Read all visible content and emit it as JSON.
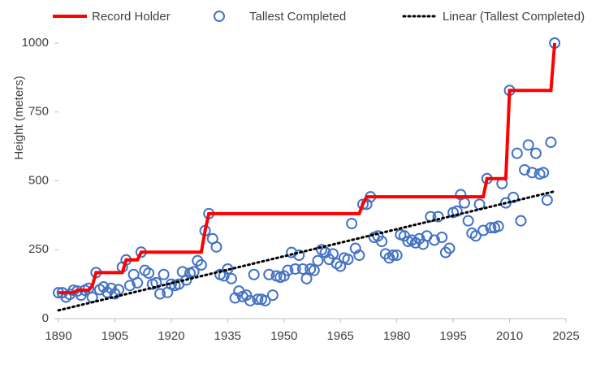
{
  "chart_data": {
    "type": "line",
    "y_label": "Height (meters)",
    "xlim": [
      1890,
      2025
    ],
    "xticks": [
      1890,
      1905,
      1920,
      1935,
      1950,
      1965,
      1980,
      1995,
      2010,
      2025
    ],
    "ylim": [
      0,
      1000
    ],
    "yticks": [
      0,
      250,
      500,
      750,
      1000
    ],
    "legend": "top",
    "series": [
      {
        "name": "Record Holder",
        "type": "line",
        "color": "#ff0000",
        "x": [
          1890,
          1894,
          1895,
          1898,
          1899,
          1900,
          1907,
          1908,
          1911,
          1912,
          1928,
          1929,
          1930,
          1970,
          1971,
          1972,
          2003,
          2004,
          2009,
          2010,
          2021,
          2022
        ],
        "values": [
          94,
          94,
          103,
          103,
          119,
          167,
          167,
          213,
          213,
          241,
          241,
          319,
          381,
          381,
          417,
          442,
          442,
          508,
          508,
          828,
          828,
          1000
        ]
      },
      {
        "name": "Tallest Completed",
        "type": "scatter",
        "color": "#4472c4",
        "x": [
          1890,
          1891,
          1892,
          1893,
          1894,
          1895,
          1896,
          1897,
          1898,
          1899,
          1900,
          1901,
          1902,
          1903,
          1904,
          1905,
          1906,
          1907,
          1908,
          1909,
          1910,
          1911,
          1912,
          1913,
          1914,
          1915,
          1916,
          1917,
          1918,
          1919,
          1920,
          1921,
          1922,
          1923,
          1924,
          1925,
          1926,
          1927,
          1928,
          1929,
          1930,
          1931,
          1932,
          1933,
          1934,
          1935,
          1936,
          1937,
          1938,
          1939,
          1940,
          1941,
          1942,
          1943,
          1944,
          1945,
          1946,
          1947,
          1948,
          1949,
          1950,
          1951,
          1952,
          1953,
          1954,
          1955,
          1956,
          1957,
          1958,
          1959,
          1960,
          1961,
          1962,
          1963,
          1964,
          1965,
          1966,
          1967,
          1968,
          1969,
          1970,
          1971,
          1972,
          1973,
          1974,
          1975,
          1976,
          1977,
          1978,
          1979,
          1980,
          1981,
          1982,
          1983,
          1984,
          1985,
          1986,
          1987,
          1988,
          1989,
          1990,
          1991,
          1992,
          1993,
          1994,
          1995,
          1996,
          1997,
          1998,
          1999,
          2000,
          2001,
          2002,
          2003,
          2004,
          2005,
          2006,
          2007,
          2008,
          2009,
          2010,
          2011,
          2012,
          2013,
          2014,
          2015,
          2016,
          2017,
          2018,
          2019,
          2020,
          2021,
          2022
        ],
        "values": [
          94,
          94,
          78,
          88,
          103,
          100,
          85,
          103,
          110,
          77,
          167,
          105,
          115,
          95,
          110,
          90,
          105,
          187,
          213,
          120,
          160,
          130,
          241,
          175,
          165,
          125,
          130,
          90,
          160,
          95,
          125,
          120,
          125,
          170,
          140,
          165,
          170,
          210,
          195,
          319,
          381,
          290,
          260,
          160,
          155,
          180,
          145,
          75,
          100,
          80,
          85,
          65,
          160,
          70,
          70,
          65,
          160,
          85,
          155,
          150,
          155,
          175,
          240,
          180,
          230,
          180,
          145,
          180,
          175,
          210,
          250,
          240,
          215,
          235,
          200,
          190,
          220,
          215,
          345,
          255,
          230,
          415,
          415,
          442,
          295,
          300,
          280,
          235,
          220,
          230,
          230,
          305,
          300,
          280,
          285,
          275,
          290,
          270,
          300,
          370,
          285,
          370,
          295,
          240,
          255,
          385,
          390,
          450,
          420,
          355,
          310,
          300,
          415,
          320,
          508,
          330,
          330,
          335,
          490,
          420,
          828,
          440,
          600,
          355,
          540,
          630,
          530,
          600,
          525,
          530,
          430,
          640,
          1000
        ]
      },
      {
        "name": "Linear (Tallest Completed)",
        "type": "line",
        "color": "#000000",
        "dash": "dotted",
        "x": [
          1890,
          2022
        ],
        "values": [
          30,
          462
        ]
      }
    ]
  }
}
